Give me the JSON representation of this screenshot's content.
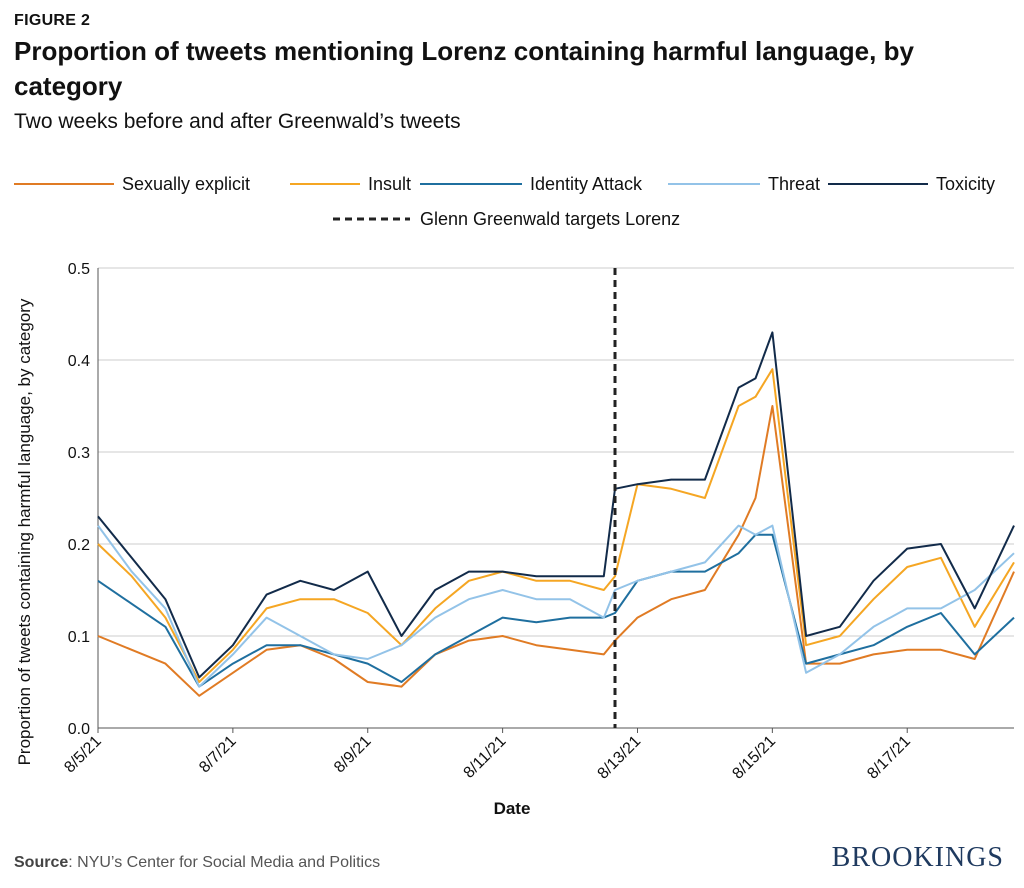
{
  "figure_label": "FIGURE 2",
  "title": "Proportion of tweets mentioning Lorenz containing harmful language, by category",
  "subtitle": "Two weeks before and after Greenwald’s tweets",
  "source_label": "Source",
  "source_text": ": NYU’s Center for Social Media and Politics",
  "brand": "BROOKINGS",
  "chart_data": {
    "type": "line",
    "xlabel": "Date",
    "ylabel": "Proportion of tweets containing harmful language, by category",
    "ylim": [
      0,
      0.5
    ],
    "yticks": [
      0.0,
      0.1,
      0.2,
      0.3,
      0.4,
      0.5
    ],
    "xlim": [
      "2021-08-05",
      "2021-08-18 14:00"
    ],
    "xticks": [
      {
        "date": "2021-08-05",
        "label": "8/5/21"
      },
      {
        "date": "2021-08-07",
        "label": "8/7/21"
      },
      {
        "date": "2021-08-09",
        "label": "8/9/21"
      },
      {
        "date": "2021-08-11",
        "label": "8/11/21"
      },
      {
        "date": "2021-08-13",
        "label": "8/13/21"
      },
      {
        "date": "2021-08-15",
        "label": "8/15/21"
      },
      {
        "date": "2021-08-17",
        "label": "8/17/21"
      }
    ],
    "grid": "horizontal",
    "legend_position": "top",
    "event_line": {
      "date": "2021-08-12 16:00",
      "label": "Glenn Greenwald targets Lorenz",
      "color": "#222222"
    },
    "x": [
      "2021-08-05 00:00",
      "2021-08-05 12:00",
      "2021-08-06 00:00",
      "2021-08-06 12:00",
      "2021-08-07 00:00",
      "2021-08-07 12:00",
      "2021-08-08 00:00",
      "2021-08-08 12:00",
      "2021-08-09 00:00",
      "2021-08-09 12:00",
      "2021-08-10 00:00",
      "2021-08-10 12:00",
      "2021-08-11 00:00",
      "2021-08-11 12:00",
      "2021-08-12 00:00",
      "2021-08-12 12:00",
      "2021-08-12 16:00",
      "2021-08-13 00:00",
      "2021-08-13 12:00",
      "2021-08-14 00:00",
      "2021-08-14 12:00",
      "2021-08-14 18:00",
      "2021-08-15 00:00",
      "2021-08-15 12:00",
      "2021-08-16 00:00",
      "2021-08-16 12:00",
      "2021-08-17 00:00",
      "2021-08-17 12:00",
      "2021-08-18 00:00",
      "2021-08-18 14:00"
    ],
    "series": [
      {
        "name": "Sexually explicit",
        "color": "#e07b24",
        "values": [
          0.1,
          0.085,
          0.07,
          0.035,
          0.06,
          0.085,
          0.09,
          0.075,
          0.05,
          0.045,
          0.08,
          0.095,
          0.1,
          0.09,
          0.085,
          0.08,
          0.095,
          0.12,
          0.14,
          0.15,
          0.21,
          0.25,
          0.35,
          0.07,
          0.07,
          0.08,
          0.085,
          0.085,
          0.075,
          0.17
        ]
      },
      {
        "name": "Insult",
        "color": "#f5a623",
        "values": [
          0.2,
          0.165,
          0.12,
          0.05,
          0.085,
          0.13,
          0.14,
          0.14,
          0.125,
          0.09,
          0.13,
          0.16,
          0.17,
          0.16,
          0.16,
          0.15,
          0.165,
          0.265,
          0.26,
          0.25,
          0.35,
          0.36,
          0.39,
          0.09,
          0.1,
          0.14,
          0.175,
          0.185,
          0.11,
          0.18
        ]
      },
      {
        "name": "Identity Attack",
        "color": "#1f6f9f",
        "values": [
          0.16,
          0.135,
          0.11,
          0.045,
          0.07,
          0.09,
          0.09,
          0.08,
          0.07,
          0.05,
          0.08,
          0.1,
          0.12,
          0.115,
          0.12,
          0.12,
          0.125,
          0.16,
          0.17,
          0.17,
          0.19,
          0.21,
          0.21,
          0.07,
          0.08,
          0.09,
          0.11,
          0.125,
          0.08,
          0.12
        ]
      },
      {
        "name": "Threat",
        "color": "#93c3e8",
        "values": [
          0.22,
          0.17,
          0.13,
          0.045,
          0.08,
          0.12,
          0.1,
          0.08,
          0.075,
          0.09,
          0.12,
          0.14,
          0.15,
          0.14,
          0.14,
          0.12,
          0.15,
          0.16,
          0.17,
          0.18,
          0.22,
          0.21,
          0.22,
          0.06,
          0.08,
          0.11,
          0.13,
          0.13,
          0.15,
          0.19
        ]
      },
      {
        "name": "Toxicity",
        "color": "#122b4a",
        "values": [
          0.23,
          0.185,
          0.14,
          0.055,
          0.09,
          0.145,
          0.16,
          0.15,
          0.17,
          0.1,
          0.15,
          0.17,
          0.17,
          0.165,
          0.165,
          0.165,
          0.26,
          0.265,
          0.27,
          0.27,
          0.37,
          0.38,
          0.43,
          0.1,
          0.11,
          0.16,
          0.195,
          0.2,
          0.13,
          0.22
        ]
      }
    ]
  }
}
